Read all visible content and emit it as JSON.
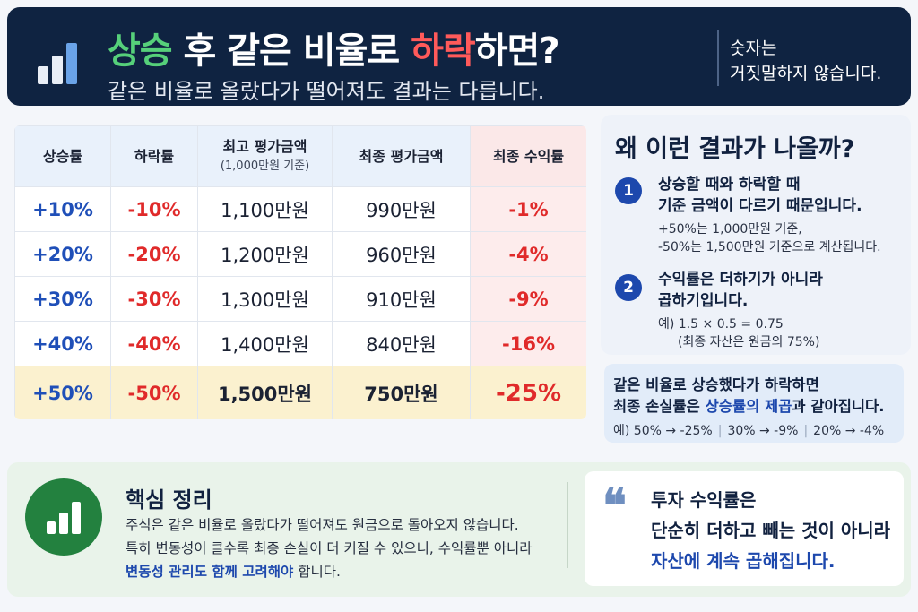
{
  "header": {
    "title_prefix": "상승",
    "title_mid": " 후 같은 비율로 ",
    "title_red": "하락",
    "title_suffix": "하면?",
    "subtitle": "같은 비율로 올랐다가 떨어져도 결과는 다릅니다.",
    "quote_line1": "숫자는",
    "quote_line2": "거짓말하지 않습니다."
  },
  "table": {
    "headers": {
      "rise": "상승률",
      "fall": "하락률",
      "peak": "최고 평가금액",
      "peak_sub": "(1,000만원 기준)",
      "final": "최종 평가금액",
      "return": "최종 수익률"
    },
    "rows": [
      {
        "rise": "+10%",
        "fall": "-10%",
        "peak": "1,100만원",
        "final": "990만원",
        "return": "-1%"
      },
      {
        "rise": "+20%",
        "fall": "-20%",
        "peak": "1,200만원",
        "final": "960만원",
        "return": "-4%"
      },
      {
        "rise": "+30%",
        "fall": "-30%",
        "peak": "1,300만원",
        "final": "910만원",
        "return": "-9%"
      },
      {
        "rise": "+40%",
        "fall": "-40%",
        "peak": "1,400만원",
        "final": "840만원",
        "return": "-16%"
      },
      {
        "rise": "+50%",
        "fall": "-50%",
        "peak": "1,500만원",
        "final": "750만원",
        "return": "-25%"
      }
    ]
  },
  "explain": {
    "title": "왜 이런 결과가 나올까?",
    "point1": {
      "num": "1",
      "head1": "상승할 때와 하락할 때",
      "head2": "기준 금액이 다르기 때문입니다.",
      "note1": "+50%는 1,000만원 기준,",
      "note2": "-50%는 1,500만원 기준으로 계산됩니다."
    },
    "point2": {
      "num": "2",
      "head1": "수익률은 더하기가 아니라",
      "head2": "곱하기입니다.",
      "note1": "예) 1.5 × 0.5 = 0.75",
      "note2": "(최종 자산은 원금의 75%)"
    }
  },
  "summary": {
    "line1": "같은 비율로 상승했다가 하락하면",
    "line2_prefix": "최종 손실률은 ",
    "line2_em": "상승률의 제곱",
    "line2_suffix": "과 같아집니다.",
    "examples": [
      "예) 50% → -25%",
      "30% → -9%",
      "20% → -4%"
    ]
  },
  "bottom": {
    "title": "핵심 정리",
    "line1": "주식은 같은 비율로 올랐다가 떨어져도 원금으로 돌아오지 않습니다.",
    "line2": "특히 변동성이 클수록 최종 손실이 더 커질 수 있으니, 수익률뿐 아니라",
    "line3_em": "변동성 관리도 함께 고려해야",
    "line3_suffix": " 합니다.",
    "quote_mark": "❝",
    "quote_line1": "투자 수익률은",
    "quote_line2": "단순히 더하고 빼는 것이 아니라",
    "quote_line3": "자산에 계속 곱해집니다."
  }
}
